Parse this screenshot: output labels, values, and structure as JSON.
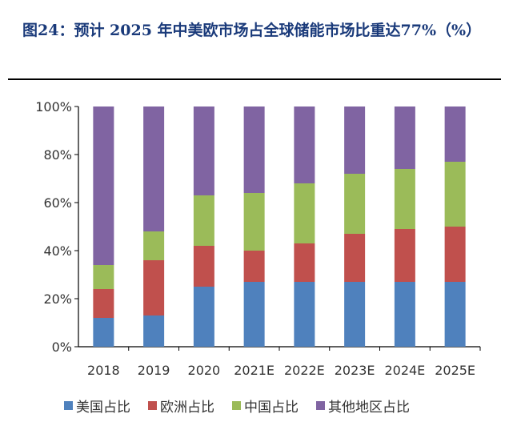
{
  "title": "图24：预计 2025 年中美欧市场占全球储能市场比重达77%（%）",
  "chart_data": {
    "type": "bar",
    "stacked": true,
    "title": "图24：预计 2025 年中美欧市场占全球储能市场比重达77%（%）",
    "categories": [
      "2018",
      "2019",
      "2020",
      "2021E",
      "2022E",
      "2023E",
      "2024E",
      "2025E"
    ],
    "ylim": [
      0,
      100
    ],
    "yticks": [
      "0%",
      "20%",
      "40%",
      "60%",
      "80%",
      "100%"
    ],
    "grid": false,
    "legend": "bottom",
    "series": [
      {
        "name": "美国占比",
        "color": "#4f81bd",
        "values": [
          12,
          13,
          25,
          27,
          27,
          27,
          27,
          27
        ]
      },
      {
        "name": "欧洲占比",
        "color": "#c0504d",
        "values": [
          12,
          23,
          17,
          13,
          16,
          20,
          22,
          23
        ]
      },
      {
        "name": "中国占比",
        "color": "#9bbb59",
        "values": [
          10,
          12,
          21,
          24,
          25,
          25,
          25,
          27
        ]
      },
      {
        "name": "其他地区占比",
        "color": "#8064a2",
        "values": [
          66,
          52,
          37,
          36,
          32,
          28,
          26,
          23
        ]
      }
    ]
  }
}
